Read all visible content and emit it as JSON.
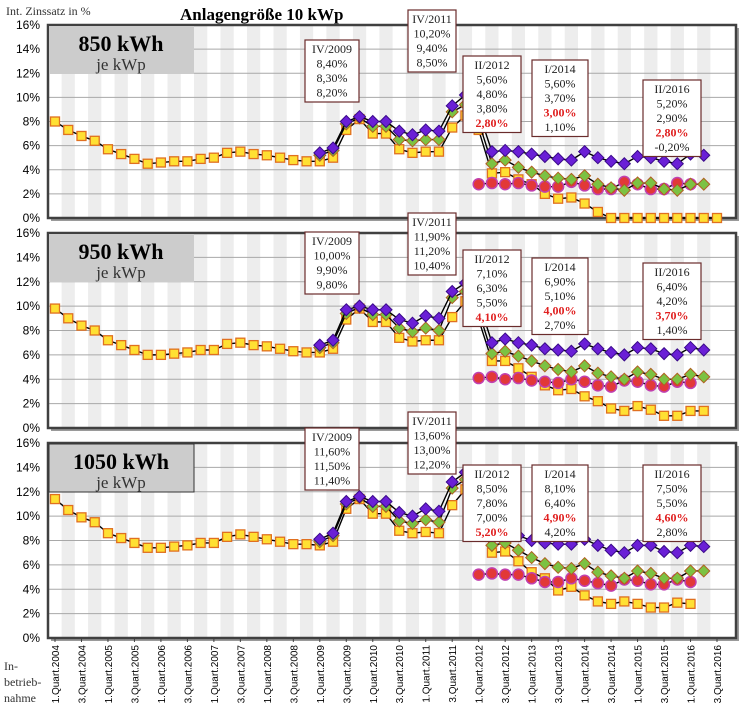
{
  "chart_data": {
    "type": "line",
    "title": "Anlagengröße  10 kWp",
    "ylabel": "Int. Zinssatz in %",
    "xlabel": "In-\nbetrieb-\nnahme",
    "ylim": [
      0,
      16
    ],
    "yticks": [
      "0%",
      "2%",
      "4%",
      "6%",
      "8%",
      "10%",
      "12%",
      "14%",
      "16%"
    ],
    "grid": true,
    "xticklabels": [
      "1.Quart.2004",
      "3.Quart.2004",
      "1.Quart.2005",
      "3.Quart.2005",
      "1.Quart.2006",
      "3.Quart.2006",
      "1.Quart.2007",
      "3.Quart.2007",
      "1.Quart.2008",
      "3.Quart.2008",
      "1.Quart.2009",
      "3.Quart.2009",
      "1.Quart.2010",
      "3.Quart.2010",
      "1.Quart.2011",
      "3.Quart.2011",
      "1.Quart.2012",
      "3.Quart.2012",
      "1.Quart.2013",
      "3.Quart.2013",
      "1.Quart.2014",
      "3.Quart.2014",
      "1.Quart.2015",
      "3.Quart.2015",
      "1.Quart.2016",
      "3.Quart.2016"
    ],
    "num_quarters": 51,
    "series_styles": [
      {
        "name": "purple",
        "marker": "diamond",
        "fill": "#6a1fd6",
        "stroke": "#3a0a8a"
      },
      {
        "name": "green",
        "marker": "diamond",
        "fill": "#7cc242",
        "stroke": "#b06020"
      },
      {
        "name": "red",
        "marker": "circle",
        "fill": "#e23838",
        "stroke": "#c040b0"
      },
      {
        "name": "yellow",
        "marker": "square",
        "fill": "#ffe033",
        "stroke": "#e07020"
      }
    ],
    "panels": [
      {
        "label_big": "850 kWh",
        "label_small": "je kWp",
        "series": [
          {
            "name": "purple",
            "start": 20,
            "values": [
              5.4,
              5.8,
              8.0,
              8.4,
              8.0,
              8.0,
              7.2,
              6.9,
              7.3,
              7.2,
              9.3,
              10.2,
              8.8,
              5.5,
              5.6,
              5.5,
              5.3,
              5.1,
              4.9,
              4.8,
              5.5,
              5.0,
              4.7,
              4.5,
              5.1,
              5.0,
              4.7,
              4.5,
              5.3,
              5.2
            ]
          },
          {
            "name": "green",
            "start": 20,
            "values": [
              5.2,
              5.6,
              7.8,
              8.3,
              7.6,
              7.6,
              6.5,
              6.4,
              6.5,
              6.5,
              8.8,
              9.4,
              8.0,
              4.5,
              4.8,
              4.2,
              3.8,
              3.5,
              3.3,
              3.2,
              3.5,
              2.8,
              2.5,
              2.3,
              2.9,
              2.9,
              2.4,
              2.3,
              2.8,
              2.8
            ]
          },
          {
            "name": "red",
            "start": 32,
            "values": [
              2.8,
              2.9,
              2.8,
              2.9,
              2.7,
              2.6,
              2.6,
              3.0,
              2.7,
              2.4,
              2.4,
              3.0,
              2.8,
              2.4,
              2.4,
              2.9,
              2.8
            ]
          },
          {
            "name": "yellow",
            "start": 0,
            "values": [
              8.0,
              7.3,
              6.8,
              6.4,
              5.7,
              5.3,
              4.9,
              4.5,
              4.6,
              4.7,
              4.7,
              4.9,
              5.0,
              5.4,
              5.5,
              5.3,
              5.2,
              5.0,
              4.8,
              4.7,
              4.7,
              5.0,
              7.3,
              8.2,
              7.0,
              7.0,
              5.7,
              5.4,
              5.5,
              5.5,
              7.5,
              8.5,
              7.3,
              3.7,
              3.8,
              3.2,
              2.8,
              2.0,
              1.6,
              1.7,
              1.2,
              0.5,
              0.0,
              -0.2,
              0.0,
              0.0,
              -0.5,
              -0.5,
              -0.5,
              -0.2,
              -0.2
            ]
          }
        ],
        "annotations": [
          {
            "title": "IV/2009",
            "lines": [
              "8,40%",
              "8,30%",
              "8,20%"
            ],
            "red_index": -1
          },
          {
            "title": "IV/2011",
            "lines": [
              "10,20%",
              "9,40%",
              "8,50%"
            ],
            "red_index": -1
          },
          {
            "title": "II/2012",
            "lines": [
              "5,60%",
              "4,80%",
              "3,80%",
              "2,80%"
            ],
            "red_index": 3
          },
          {
            "title": "I/2014",
            "lines": [
              "5,60%",
              "3,70%",
              "3,00%",
              "1,10%"
            ],
            "red_index": 2
          },
          {
            "title": "II/2016",
            "lines": [
              "5,20%",
              "2,90%",
              "2,80%",
              "-0,20%"
            ],
            "red_index": 2
          }
        ]
      },
      {
        "label_big": "950 kWh",
        "label_small": "je kWp",
        "series": [
          {
            "name": "purple",
            "start": 20,
            "values": [
              6.8,
              7.2,
              9.7,
              10.0,
              9.7,
              9.7,
              8.9,
              8.6,
              9.2,
              9.0,
              11.2,
              11.9,
              10.4,
              7.0,
              7.3,
              7.0,
              6.8,
              6.5,
              6.4,
              6.3,
              6.9,
              6.5,
              6.2,
              6.0,
              6.6,
              6.5,
              6.1,
              6.0,
              6.6,
              6.4
            ]
          },
          {
            "name": "green",
            "start": 20,
            "values": [
              6.6,
              7.0,
              9.4,
              9.9,
              9.3,
              9.3,
              8.2,
              7.9,
              8.2,
              8.0,
              10.7,
              11.2,
              9.6,
              6.1,
              6.3,
              5.9,
              5.5,
              5.1,
              4.8,
              4.6,
              5.1,
              4.5,
              4.2,
              4.0,
              4.6,
              4.4,
              4.0,
              4.0,
              4.4,
              4.2
            ]
          },
          {
            "name": "red",
            "start": 32,
            "values": [
              4.1,
              4.2,
              4.0,
              4.1,
              3.9,
              3.8,
              3.7,
              4.0,
              3.8,
              3.5,
              3.4,
              3.9,
              3.8,
              3.5,
              3.4,
              3.8,
              3.7
            ]
          },
          {
            "name": "yellow",
            "start": 0,
            "values": [
              9.8,
              9.0,
              8.4,
              8.0,
              7.2,
              6.8,
              6.4,
              6.0,
              6.0,
              6.1,
              6.2,
              6.4,
              6.4,
              6.9,
              7.0,
              6.8,
              6.7,
              6.5,
              6.3,
              6.2,
              6.2,
              6.5,
              8.9,
              9.8,
              8.7,
              8.7,
              7.4,
              7.1,
              7.2,
              7.2,
              9.1,
              10.4,
              8.9,
              5.5,
              5.5,
              4.9,
              4.2,
              3.5,
              3.1,
              3.2,
              2.6,
              2.2,
              1.6,
              1.4,
              1.8,
              1.5,
              1.0,
              1.0,
              1.4,
              1.4
            ]
          }
        ],
        "annotations": [
          {
            "title": "IV/2009",
            "lines": [
              "10,00%",
              "9,90%",
              "9,80%"
            ],
            "red_index": -1
          },
          {
            "title": "IV/2011",
            "lines": [
              "11,90%",
              "11,20%",
              "10,40%"
            ],
            "red_index": -1
          },
          {
            "title": "II/2012",
            "lines": [
              "7,10%",
              "6,30%",
              "5,50%",
              "4,10%"
            ],
            "red_index": 3
          },
          {
            "title": "I/2014",
            "lines": [
              "6,90%",
              "5,10%",
              "4,00%",
              "2,70%"
            ],
            "red_index": 2
          },
          {
            "title": "II/2016",
            "lines": [
              "6,40%",
              "4,20%",
              "3,70%",
              "1,40%"
            ],
            "red_index": 2
          }
        ]
      },
      {
        "label_big": "1050 kWh",
        "label_small": "je kWp",
        "series": [
          {
            "name": "purple",
            "start": 20,
            "values": [
              8.1,
              8.6,
              11.2,
              11.6,
              11.2,
              11.2,
              10.3,
              10.0,
              10.6,
              10.4,
              12.8,
              13.6,
              12.0,
              8.5,
              8.8,
              8.4,
              8.0,
              7.8,
              7.7,
              7.7,
              8.1,
              7.6,
              7.2,
              7.0,
              7.6,
              7.6,
              7.1,
              7.0,
              7.6,
              7.5
            ]
          },
          {
            "name": "green",
            "start": 20,
            "values": [
              7.9,
              8.4,
              11.0,
              11.5,
              10.8,
              10.8,
              9.6,
              9.4,
              9.7,
              9.5,
              12.3,
              13.0,
              11.3,
              7.6,
              7.8,
              7.2,
              6.6,
              6.1,
              5.8,
              5.7,
              6.1,
              5.4,
              5.1,
              4.9,
              5.5,
              5.3,
              4.9,
              4.9,
              5.5,
              5.5
            ]
          },
          {
            "name": "red",
            "start": 32,
            "values": [
              5.2,
              5.3,
              5.2,
              5.2,
              4.9,
              4.6,
              4.6,
              4.9,
              4.7,
              4.5,
              4.3,
              4.8,
              4.7,
              4.4,
              4.4,
              4.8,
              4.6
            ]
          },
          {
            "name": "yellow",
            "start": 0,
            "values": [
              11.4,
              10.5,
              9.9,
              9.5,
              8.6,
              8.2,
              7.8,
              7.4,
              7.4,
              7.5,
              7.6,
              7.8,
              7.8,
              8.3,
              8.5,
              8.3,
              8.1,
              7.9,
              7.7,
              7.7,
              7.6,
              7.9,
              10.6,
              11.4,
              10.2,
              10.2,
              8.8,
              8.6,
              8.7,
              8.6,
              10.9,
              12.2,
              10.6,
              7.0,
              7.1,
              6.3,
              5.4,
              4.9,
              3.9,
              4.2,
              3.5,
              3.0,
              2.8,
              3.0,
              2.8,
              2.5,
              2.5,
              2.9,
              2.8
            ]
          }
        ],
        "annotations": [
          {
            "title": "IV/2009",
            "lines": [
              "11,60%",
              "11,50%",
              "11,40%"
            ],
            "red_index": -1
          },
          {
            "title": "IV/2011",
            "lines": [
              "13,60%",
              "13,00%",
              "12,20%"
            ],
            "red_index": -1
          },
          {
            "title": "II/2012",
            "lines": [
              "8,50%",
              "7,80%",
              "7,00%",
              "5,20%"
            ],
            "red_index": 3
          },
          {
            "title": "I/2014",
            "lines": [
              "8,10%",
              "6,40%",
              "4,90%",
              "4,20%"
            ],
            "red_index": 2
          },
          {
            "title": "II/2016",
            "lines": [
              "7,50%",
              "5,50%",
              "4,60%",
              "2,80%"
            ],
            "red_index": 2
          }
        ]
      }
    ]
  }
}
